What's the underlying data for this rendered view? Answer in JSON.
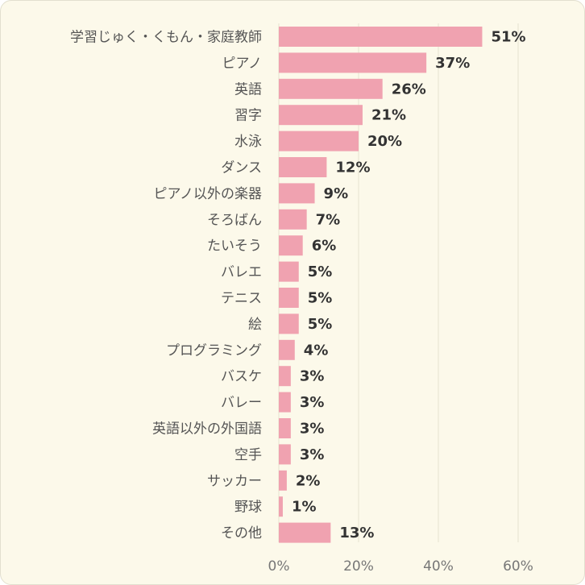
{
  "chart_data": {
    "type": "bar",
    "orientation": "horizontal",
    "categories": [
      "学習じゅく・くもん・家庭教師",
      "ピアノ",
      "英語",
      "習字",
      "水泳",
      "ダンス",
      "ピアノ以外の楽器",
      "そろばん",
      "たいそう",
      "バレエ",
      "テニス",
      "絵",
      "プログラミング",
      "バスケ",
      "バレー",
      "英語以外の外国語",
      "空手",
      "サッカー",
      "野球",
      "その他"
    ],
    "values": [
      51,
      37,
      26,
      21,
      20,
      12,
      9,
      7,
      6,
      5,
      5,
      5,
      4,
      3,
      3,
      3,
      3,
      2,
      1,
      13
    ],
    "value_labels": [
      "51%",
      "37%",
      "26%",
      "21%",
      "20%",
      "12%",
      "9%",
      "7%",
      "6%",
      "5%",
      "5%",
      "5%",
      "4%",
      "3%",
      "3%",
      "3%",
      "3%",
      "2%",
      "1%",
      "13%"
    ],
    "xlim": [
      0,
      60
    ],
    "xticks": [
      0,
      20,
      40,
      60
    ],
    "xtick_labels": [
      "0%",
      "20%",
      "40%",
      "60%"
    ],
    "grid": true,
    "colors": {
      "bar": "#f0a2b0",
      "background": "#fcf9ea"
    }
  }
}
